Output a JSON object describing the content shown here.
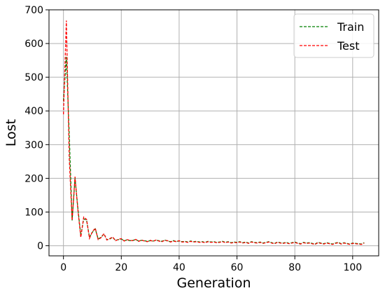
{
  "chart_data": {
    "type": "line",
    "title": "",
    "xlabel": "Generation",
    "ylabel": "Lost",
    "xlim": [
      -5,
      109
    ],
    "ylim": [
      -30,
      700
    ],
    "xticks": [
      0,
      20,
      40,
      60,
      80,
      100
    ],
    "yticks": [
      0,
      100,
      200,
      300,
      400,
      500,
      600,
      700
    ],
    "grid": true,
    "legend_position": "top-right",
    "series": [
      {
        "name": "Train",
        "color": "#008000",
        "linestyle": "dashed",
        "x": [
          0,
          1,
          2,
          3,
          4,
          5,
          6,
          7,
          8,
          9,
          10,
          11,
          12,
          13,
          14,
          15,
          16,
          17,
          18,
          19,
          20,
          21,
          22,
          23,
          24,
          25,
          26,
          27,
          28,
          29,
          30,
          31,
          32,
          33,
          34,
          35,
          36,
          37,
          38,
          39,
          40,
          41,
          42,
          43,
          44,
          45,
          46,
          47,
          48,
          49,
          50,
          51,
          52,
          53,
          54,
          55,
          56,
          57,
          58,
          59,
          60,
          61,
          62,
          63,
          64,
          65,
          66,
          67,
          68,
          69,
          70,
          71,
          72,
          73,
          74,
          75,
          76,
          77,
          78,
          79,
          80,
          81,
          82,
          83,
          84,
          85,
          86,
          87,
          88,
          89,
          90,
          91,
          92,
          93,
          94,
          95,
          96,
          97,
          98,
          99,
          100,
          101,
          102,
          103,
          104
        ],
        "y": [
          430,
          560,
          330,
          75,
          200,
          110,
          30,
          80,
          75,
          25,
          40,
          50,
          20,
          25,
          35,
          18,
          20,
          25,
          16,
          18,
          20,
          15,
          17,
          15,
          16,
          18,
          14,
          16,
          15,
          13,
          15,
          14,
          16,
          15,
          13,
          17,
          14,
          12,
          15,
          13,
          14,
          12,
          13,
          11,
          14,
          12,
          13,
          11,
          12,
          10,
          13,
          11,
          12,
          10,
          11,
          13,
          10,
          12,
          9,
          11,
          10,
          12,
          9,
          11,
          8,
          12,
          10,
          9,
          11,
          8,
          10,
          12,
          9,
          7,
          11,
          9,
          8,
          10,
          7,
          9,
          11,
          8,
          6,
          10,
          8,
          9,
          7,
          5,
          10,
          8,
          6,
          9,
          7,
          5,
          8,
          10,
          6,
          9,
          7,
          5,
          8,
          7,
          6,
          5,
          9
        ]
      },
      {
        "name": "Test",
        "color": "#ff0000",
        "linestyle": "dashed",
        "x": [
          0,
          1,
          2,
          3,
          4,
          5,
          6,
          7,
          8,
          9,
          10,
          11,
          12,
          13,
          14,
          15,
          16,
          17,
          18,
          19,
          20,
          21,
          22,
          23,
          24,
          25,
          26,
          27,
          28,
          29,
          30,
          31,
          32,
          33,
          34,
          35,
          36,
          37,
          38,
          39,
          40,
          41,
          42,
          43,
          44,
          45,
          46,
          47,
          48,
          49,
          50,
          51,
          52,
          53,
          54,
          55,
          56,
          57,
          58,
          59,
          60,
          61,
          62,
          63,
          64,
          65,
          66,
          67,
          68,
          69,
          70,
          71,
          72,
          73,
          74,
          75,
          76,
          77,
          78,
          79,
          80,
          81,
          82,
          83,
          84,
          85,
          86,
          87,
          88,
          89,
          90,
          91,
          92,
          93,
          94,
          95,
          96,
          97,
          98,
          99,
          100,
          101,
          102,
          103,
          104
        ],
        "y": [
          390,
          668,
          260,
          75,
          205,
          105,
          25,
          85,
          78,
          22,
          42,
          52,
          18,
          24,
          36,
          17,
          21,
          26,
          15,
          19,
          21,
          14,
          18,
          16,
          15,
          19,
          13,
          17,
          14,
          12,
          16,
          13,
          17,
          14,
          12,
          16,
          15,
          11,
          14,
          12,
          15,
          11,
          12,
          10,
          13,
          11,
          12,
          10,
          11,
          9,
          12,
          10,
          11,
          9,
          10,
          12,
          9,
          11,
          8,
          10,
          9,
          11,
          8,
          10,
          7,
          11,
          9,
          8,
          10,
          7,
          9,
          11,
          8,
          6,
          10,
          8,
          7,
          9,
          6,
          8,
          10,
          7,
          5,
          9,
          7,
          8,
          6,
          4,
          9,
          7,
          5,
          8,
          6,
          4,
          7,
          9,
          5,
          8,
          6,
          4,
          7,
          6,
          5,
          4,
          8
        ]
      }
    ]
  }
}
